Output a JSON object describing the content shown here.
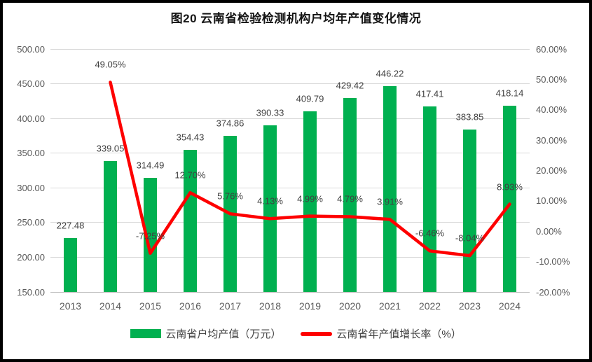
{
  "window": {
    "background": "#FFFFFF",
    "frame_color": "#000000"
  },
  "chart_data": {
    "type": "combo-bar-line",
    "title": "图20  云南省检验检测机构户均年产值变化情况",
    "categories": [
      "2013",
      "2014",
      "2015",
      "2016",
      "2017",
      "2018",
      "2019",
      "2020",
      "2021",
      "2022",
      "2023",
      "2024"
    ],
    "series": [
      {
        "name": "云南省户均产值（万元）",
        "type": "bar",
        "axis": "left",
        "color": "#00B050",
        "values": [
          227.48,
          339.05,
          314.49,
          354.43,
          374.86,
          390.33,
          409.79,
          429.42,
          446.22,
          417.41,
          383.85,
          418.14
        ],
        "data_labels": [
          "227.48",
          "339.05",
          "314.49",
          "354.43",
          "374.86",
          "390.33",
          "409.79",
          "429.42",
          "446.22",
          "417.41",
          "383.85",
          "418.14"
        ]
      },
      {
        "name": "云南省年产值增长率（%）",
        "type": "line",
        "axis": "right",
        "color": "#FE0000",
        "values": [
          null,
          49.05,
          -7.25,
          12.7,
          5.76,
          4.13,
          4.99,
          4.79,
          3.91,
          -6.46,
          -8.04,
          8.93
        ],
        "data_labels": [
          null,
          "49.05%",
          "-7.25%",
          "12.70%",
          "5.76%",
          "4.13%",
          "4.99%",
          "4.79%",
          "3.91%",
          "-6.46%",
          "-8.04%",
          "8.93%"
        ]
      }
    ],
    "left_axis": {
      "min": 150,
      "max": 500,
      "step": 50,
      "tick_labels": [
        "500.00",
        "450.00",
        "400.00",
        "350.00",
        "300.00",
        "250.00",
        "200.00",
        "150.00"
      ]
    },
    "right_axis": {
      "min": -20,
      "max": 60,
      "step": 10,
      "tick_labels": [
        "60.00%",
        "50.00%",
        "40.00%",
        "30.00%",
        "20.00%",
        "10.00%",
        "0.00%",
        "-10.00%",
        "-20.00%"
      ]
    },
    "grid": true,
    "legend_position": "bottom"
  }
}
